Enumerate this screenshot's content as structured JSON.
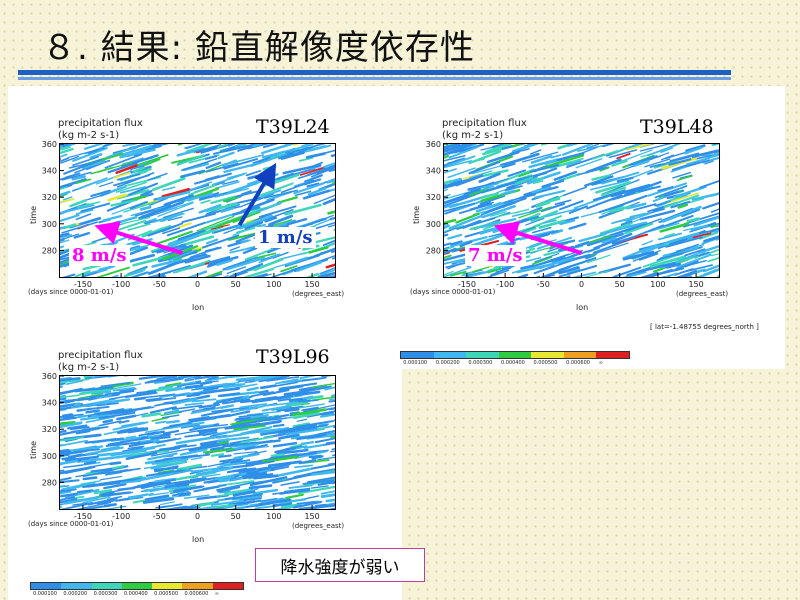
{
  "slide": {
    "title": "８. 結果: 鉛直解像度依存性",
    "note": "降水強度が弱い",
    "lat_note": "[ lat=-1.48755 degrees_north ]"
  },
  "colorbar": {
    "ticks": [
      "0.000100",
      "0.000200",
      "0.000300",
      "0.000400",
      "0.000500",
      "0.000600",
      "∞"
    ],
    "colors": [
      "#2f8fe8",
      "#3fb8f0",
      "#3ed6b8",
      "#2ecc40",
      "#e8e830",
      "#f0a020",
      "#e02020"
    ]
  },
  "chart_data": [
    {
      "type": "heatmap",
      "label": "T39L24",
      "title": "precipitation flux",
      "units": "(kg m-2 s-1)",
      "xlabel": "lon",
      "x_units": "(degrees_east)",
      "ylabel": "time",
      "y_units": "(days since 0000-01-01)",
      "xlim": [
        -180,
        180
      ],
      "ylim": [
        260,
        360
      ],
      "xticks": [
        -150,
        -100,
        -50,
        0,
        50,
        100,
        150
      ],
      "yticks": [
        280,
        300,
        320,
        340,
        360
      ],
      "annotations": [
        {
          "text": "8 m/s",
          "color": "#ff00ff",
          "from": [
            -20,
            278
          ],
          "to": [
            -120,
            296
          ]
        },
        {
          "text": "1 m/s",
          "color": "#1040c0",
          "from": [
            55,
            299
          ],
          "to": [
            95,
            338
          ]
        }
      ]
    },
    {
      "type": "heatmap",
      "label": "T39L48",
      "title": "precipitation flux",
      "units": "(kg m-2 s-1)",
      "xlabel": "lon",
      "x_units": "(degrees_east)",
      "ylabel": "time",
      "y_units": "(days since 0000-01-01)",
      "xlim": [
        -180,
        180
      ],
      "ylim": [
        260,
        360
      ],
      "xticks": [
        -150,
        -100,
        -50,
        0,
        50,
        100,
        150
      ],
      "yticks": [
        280,
        300,
        320,
        340,
        360
      ],
      "annotations": [
        {
          "text": "7 m/s",
          "color": "#ff00ff",
          "from": [
            0,
            278
          ],
          "to": [
            -100,
            296
          ]
        }
      ]
    },
    {
      "type": "heatmap",
      "label": "T39L96",
      "title": "precipitation flux",
      "units": "(kg m-2 s-1)",
      "xlabel": "lon",
      "x_units": "(degrees_east)",
      "ylabel": "time",
      "y_units": "(days since 0000-01-01)",
      "xlim": [
        -180,
        180
      ],
      "ylim": [
        260,
        360
      ],
      "xticks": [
        -150,
        -100,
        -50,
        0,
        50,
        100,
        150
      ],
      "yticks": [
        280,
        300,
        320,
        340,
        360
      ],
      "annotations": []
    }
  ]
}
